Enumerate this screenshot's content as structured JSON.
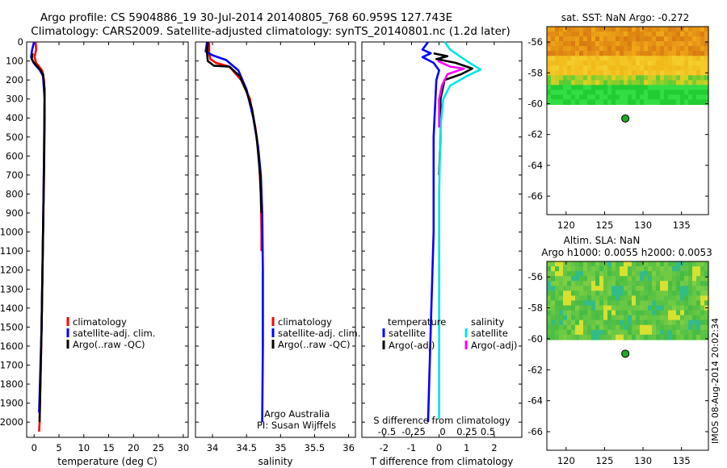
{
  "title": {
    "line1": "Argo profile: CS 5904886_19 30-Jul-2014 20140805_768 60.959S 127.743E",
    "line2": "Climatology: CARS2009. Satellite-adjusted climatology: synTS_20140801.nc (1.2d later)"
  },
  "colors": {
    "climatology": "#ff0000",
    "satellite": "#0000ff",
    "argo": "#000000",
    "sat_salinity": "#00e5e5",
    "argo_salinity": "#ff00ff",
    "marker": "#22aa22"
  },
  "depth_axis": {
    "ylim": [
      0,
      2080
    ],
    "ticks": [
      0,
      100,
      200,
      300,
      400,
      500,
      600,
      700,
      800,
      900,
      1000,
      1100,
      1200,
      1300,
      1400,
      1500,
      1600,
      1700,
      1800,
      1900,
      2000
    ]
  },
  "chart_data": [
    {
      "id": "temperature",
      "type": "line",
      "xlabel": "temperature (deg C)",
      "xlim": [
        -1.5,
        31
      ],
      "xticks": [
        0,
        5,
        10,
        15,
        20,
        25,
        30
      ],
      "legend": [
        "climatology",
        "satellite-adj. clim.",
        "Argo(..raw -QC)"
      ],
      "series": [
        {
          "name": "climatology",
          "color": "#ff0000",
          "points": [
            [
              0.3,
              0
            ],
            [
              0.4,
              40
            ],
            [
              0.1,
              80
            ],
            [
              0.4,
              110
            ],
            [
              1.6,
              150
            ],
            [
              2.0,
              200
            ],
            [
              2.1,
              300
            ],
            [
              2.0,
              600
            ],
            [
              1.8,
              1000
            ],
            [
              1.5,
              1500
            ],
            [
              1.1,
              2000
            ],
            [
              1.0,
              2050
            ]
          ]
        },
        {
          "name": "satellite-adj. clim.",
          "color": "#0000ff",
          "points": [
            [
              0.0,
              0
            ],
            [
              -0.4,
              40
            ],
            [
              -0.6,
              80
            ],
            [
              -0.1,
              110
            ],
            [
              1.2,
              150
            ],
            [
              1.8,
              180
            ],
            [
              2.1,
              300
            ],
            [
              2.0,
              600
            ],
            [
              1.8,
              1000
            ],
            [
              1.5,
              1500
            ],
            [
              1.0,
              1950
            ]
          ]
        },
        {
          "name": "Argo(..raw -QC)",
          "color": "#000000",
          "points": [
            [
              -0.3,
              60
            ],
            [
              -0.5,
              90
            ],
            [
              0.0,
              110
            ],
            [
              1.0,
              140
            ],
            [
              1.8,
              170
            ],
            [
              2.1,
              250
            ],
            [
              2.1,
              400
            ],
            [
              2.0,
              700
            ],
            [
              1.8,
              1000
            ],
            [
              1.5,
              1500
            ],
            [
              1.1,
              2000
            ]
          ]
        }
      ]
    },
    {
      "id": "salinity",
      "type": "line",
      "xlabel": "salinity",
      "xlim": [
        33.75,
        36.1
      ],
      "xticks": [
        34,
        34.5,
        35,
        35.5,
        36
      ],
      "tick_labels": [
        "34",
        "34.5",
        "35",
        "35.5",
        "36"
      ],
      "legend": [
        "climatology",
        "satellite-adj. clim.",
        "Argo(..raw -QC)"
      ],
      "annotation": [
        "Argo Australia",
        "PI: Susan Wijffels"
      ],
      "series": [
        {
          "name": "climatology",
          "color": "#ff0000",
          "points": [
            [
              33.95,
              0
            ],
            [
              33.95,
              60
            ],
            [
              33.97,
              90
            ],
            [
              34.05,
              110
            ],
            [
              34.25,
              130
            ],
            [
              34.42,
              200
            ],
            [
              34.55,
              300
            ],
            [
              34.63,
              450
            ],
            [
              34.68,
              600
            ],
            [
              34.71,
              800
            ],
            [
              34.72,
              1000
            ],
            [
              34.72,
              1100
            ]
          ]
        },
        {
          "name": "satellite-adj. clim.",
          "color": "#0000ff",
          "points": [
            [
              33.92,
              0
            ],
            [
              33.9,
              50
            ],
            [
              34.0,
              70
            ],
            [
              34.2,
              95
            ],
            [
              34.38,
              150
            ],
            [
              34.5,
              250
            ],
            [
              34.6,
              400
            ],
            [
              34.67,
              550
            ],
            [
              34.71,
              700
            ],
            [
              34.73,
              900
            ],
            [
              34.74,
              1200
            ],
            [
              34.74,
              1600
            ],
            [
              34.73,
              2000
            ]
          ]
        },
        {
          "name": "Argo(..raw -QC)",
          "color": "#000000",
          "points": [
            [
              33.93,
              0
            ],
            [
              33.92,
              60
            ],
            [
              33.93,
              100
            ],
            [
              34.02,
              125
            ],
            [
              34.25,
              130
            ],
            [
              34.4,
              180
            ],
            [
              34.5,
              260
            ],
            [
              34.58,
              350
            ],
            [
              34.65,
              500
            ],
            [
              34.7,
              700
            ],
            [
              34.72,
              900
            ]
          ]
        }
      ]
    },
    {
      "id": "difference",
      "type": "line",
      "xlabel": "T difference from climatology",
      "xlabel_top": "S difference from climatology",
      "xlim": [
        -2.8,
        3.0
      ],
      "xticks": [
        -2,
        -1,
        0,
        1,
        2
      ],
      "s_ticks": [
        "-0.5",
        "-0.25",
        "0",
        "0.25",
        "0.5"
      ],
      "legend_headers": [
        "temperature",
        "salinity"
      ],
      "legend_left": [
        "satellite",
        "Argo(-adj)"
      ],
      "legend_right": [
        "satellite",
        "Argo(-adj)"
      ],
      "series": [
        {
          "name": "temperature satellite",
          "color": "#0000ff",
          "points": [
            [
              -0.4,
              0
            ],
            [
              -0.6,
              40
            ],
            [
              -0.3,
              60
            ],
            [
              -0.6,
              80
            ],
            [
              -0.2,
              110
            ],
            [
              0.0,
              150
            ],
            [
              -0.1,
              200
            ],
            [
              -0.2,
              500
            ],
            [
              -0.2,
              1000
            ],
            [
              -0.3,
              1500
            ],
            [
              -0.4,
              2000
            ]
          ]
        },
        {
          "name": "temperature Argo(-adj)",
          "color": "#000000",
          "points": [
            [
              -0.2,
              60
            ],
            [
              0.3,
              75
            ],
            [
              -0.1,
              90
            ],
            [
              0.6,
              110
            ],
            [
              1.2,
              140
            ],
            [
              0.8,
              170
            ],
            [
              0.2,
              200
            ],
            [
              0.05,
              300
            ],
            [
              0.05,
              500
            ],
            [
              0.0,
              700
            ]
          ]
        },
        {
          "name": "salinity satellite",
          "color": "#00e5e5",
          "points": [
            [
              0.2,
              0
            ],
            [
              0.4,
              40
            ],
            [
              1.0,
              100
            ],
            [
              1.5,
              145
            ],
            [
              1.0,
              180
            ],
            [
              0.4,
              230
            ],
            [
              0.15,
              300
            ],
            [
              0.05,
              450
            ],
            [
              0.0,
              800
            ],
            [
              0.0,
              1500
            ],
            [
              0.0,
              1980
            ]
          ]
        },
        {
          "name": "salinity Argo(-adj)",
          "color": "#ff00ff",
          "points": [
            [
              -0.05,
              100
            ],
            [
              0.4,
              130
            ],
            [
              0.9,
              140
            ],
            [
              0.3,
              170
            ],
            [
              0.1,
              230
            ],
            [
              0.0,
              300
            ],
            [
              0.0,
              450
            ]
          ]
        }
      ]
    }
  ],
  "maps": [
    {
      "id": "sst-map",
      "title": "sat. SST: NaN Argo: -0.272",
      "subtitle": "",
      "xticks": [
        120,
        125,
        130,
        135
      ],
      "yticks": [
        -56,
        -58,
        -60,
        -62,
        -64,
        -66
      ],
      "xlim": [
        117.5,
        138.5
      ],
      "ylim": [
        -67.2,
        -55.0
      ],
      "data_lat_min": -60.05,
      "marker": {
        "lon": 127.7,
        "lat": -60.96
      }
    },
    {
      "id": "sla-map",
      "title": "Altim. SLA: NaN",
      "subtitle": "Argo h1000: 0.0055 h2000: 0.0053",
      "xticks": [
        120,
        125,
        130,
        135
      ],
      "yticks": [
        -56,
        -58,
        -60,
        -62,
        -64,
        -66
      ],
      "xlim": [
        117.5,
        138.5
      ],
      "ylim": [
        -67.2,
        -55.0
      ],
      "data_lat_min": -60.05,
      "marker": {
        "lon": 127.7,
        "lat": -60.96
      }
    }
  ],
  "stamp": "IMOS 08-Aug-2014 20:02:34"
}
